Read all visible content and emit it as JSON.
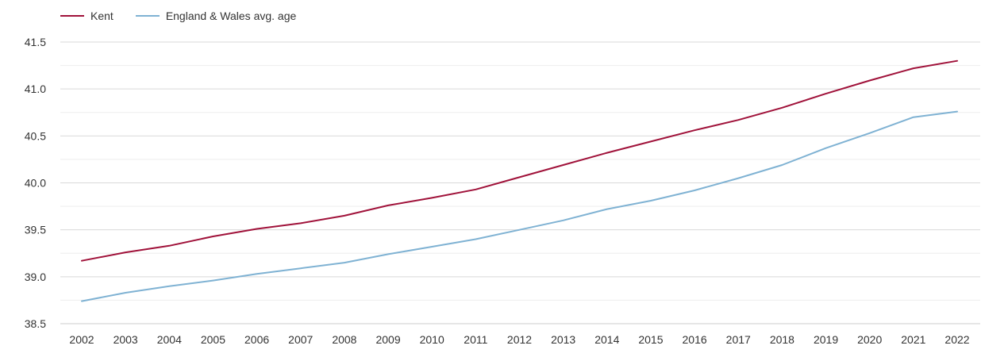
{
  "chart_data": {
    "type": "line",
    "title": "",
    "xlabel": "",
    "ylabel": "",
    "x": [
      "2002",
      "2003",
      "2004",
      "2005",
      "2006",
      "2007",
      "2008",
      "2009",
      "2010",
      "2011",
      "2012",
      "2013",
      "2014",
      "2015",
      "2016",
      "2017",
      "2018",
      "2019",
      "2020",
      "2021",
      "2022"
    ],
    "ylim": [
      38.5,
      41.5
    ],
    "yticks": [
      "38.5",
      "39.0",
      "39.5",
      "40.0",
      "40.5",
      "41.0",
      "41.5"
    ],
    "grid": true,
    "legend_position": "top-left",
    "series": [
      {
        "name": "Kent",
        "color": "#a0123a",
        "values": [
          39.17,
          39.26,
          39.33,
          39.43,
          39.51,
          39.57,
          39.65,
          39.76,
          39.84,
          39.93,
          40.06,
          40.19,
          40.32,
          40.44,
          40.56,
          40.67,
          40.8,
          40.95,
          41.09,
          41.22,
          41.3
        ]
      },
      {
        "name": "England & Wales avg. age",
        "color": "#7fb2d3",
        "values": [
          38.74,
          38.83,
          38.9,
          38.96,
          39.03,
          39.09,
          39.15,
          39.24,
          39.32,
          39.4,
          39.5,
          39.6,
          39.72,
          39.81,
          39.92,
          40.05,
          40.19,
          40.37,
          40.53,
          40.7,
          40.76
        ]
      }
    ]
  }
}
